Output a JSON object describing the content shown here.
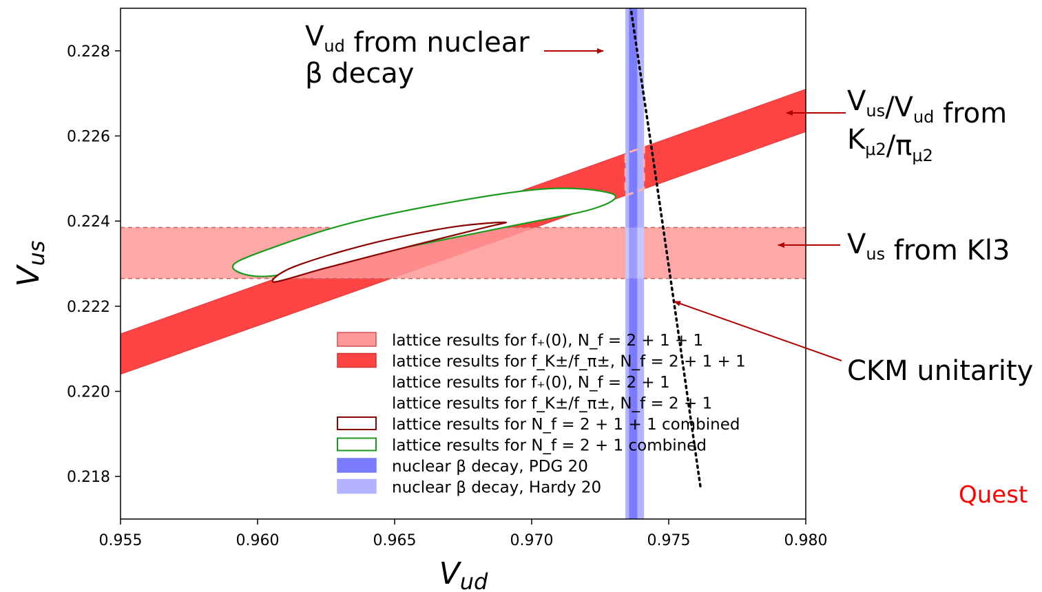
{
  "chart_data": {
    "type": "scatter",
    "xlabel": "V_ud",
    "ylabel": "V_us",
    "xlim": [
      0.955,
      0.98
    ],
    "ylim": [
      0.217,
      0.229
    ],
    "xticks": [
      "0.955",
      "0.960",
      "0.965",
      "0.970",
      "0.975",
      "0.980"
    ],
    "yticks": [
      "0.218",
      "0.220",
      "0.222",
      "0.224",
      "0.226",
      "0.228"
    ],
    "grid": false,
    "legend_position": "lower-center",
    "bands": [
      {
        "kind": "horizontal",
        "name": "lattice results for f+(0), Nf = 2+1+1",
        "y_min": 0.22265,
        "y_max": 0.22385,
        "color": "#ff9999"
      },
      {
        "kind": "sloped",
        "name": "lattice results for fK±/fπ±, Nf = 2+1+1",
        "lower": [
          [
            0.955,
            0.2204
          ],
          [
            0.98,
            0.2261
          ]
        ],
        "upper": [
          [
            0.955,
            0.22135
          ],
          [
            0.98,
            0.2271
          ]
        ],
        "color": "#ff4444"
      },
      {
        "kind": "vertical",
        "name": "nuclear β decay, PDG 20",
        "x_min": 0.97355,
        "x_max": 0.97385,
        "color": "#7b7bff"
      },
      {
        "kind": "vertical",
        "name": "nuclear β decay, Hardy 20",
        "x_min": 0.97342,
        "x_max": 0.9741,
        "color": "#b3b3ff"
      }
    ],
    "ellipses": [
      {
        "name": "lattice results for Nf = 2+1+1 combined",
        "color": "#8b0000",
        "points": [
          [
            0.9606,
            0.22257
          ],
          [
            0.9613,
            0.22292
          ],
          [
            0.964,
            0.22345
          ],
          [
            0.967,
            0.22385
          ],
          [
            0.969,
            0.22397
          ],
          [
            0.9683,
            0.22385
          ],
          [
            0.9655,
            0.2234
          ],
          [
            0.9625,
            0.2229
          ],
          [
            0.9606,
            0.22257
          ]
        ]
      },
      {
        "name": "lattice results for Nf = 2+1 combined",
        "color": "#1a9a1a",
        "points": [
          [
            0.9591,
            0.2229
          ],
          [
            0.9601,
            0.22327
          ],
          [
            0.964,
            0.22405
          ],
          [
            0.97,
            0.22473
          ],
          [
            0.9729,
            0.22465
          ],
          [
            0.9723,
            0.2243
          ],
          [
            0.969,
            0.22385
          ],
          [
            0.964,
            0.2232
          ],
          [
            0.9605,
            0.22271
          ],
          [
            0.9591,
            0.2229
          ]
        ]
      }
    ],
    "unitarity_curve": {
      "name": "CKM unitarity",
      "points": [
        [
          0.97357,
          0.2292
        ],
        [
          0.97447,
          0.2253
        ],
        [
          0.97528,
          0.2217
        ],
        [
          0.97617,
          0.2177
        ]
      ]
    },
    "legend": [
      {
        "label": "lattice results for f₊(0), N_f = 2 + 1 + 1",
        "swatch": "fill",
        "color": "#ff9999",
        "edge": "#d05050"
      },
      {
        "label": "lattice results for f_K±/f_π±, N_f = 2 + 1 + 1",
        "swatch": "fill",
        "color": "#ff4444",
        "edge": "#d03030"
      },
      {
        "label": "lattice results for f₊(0), N_f = 2 + 1",
        "swatch": "none",
        "color": "#ffffff",
        "edge": "#ffffff"
      },
      {
        "label": "lattice results for f_K±/f_π±, N_f = 2 + 1",
        "swatch": "none",
        "color": "#ffffff",
        "edge": "#ffffff"
      },
      {
        "label": "lattice results for N_f = 2 + 1 + 1 combined",
        "swatch": "outline",
        "color": "#ffffff",
        "edge": "#8b0000"
      },
      {
        "label": "lattice results for N_f = 2 + 1 combined",
        "swatch": "outline",
        "color": "#ffffff",
        "edge": "#1a9a1a"
      },
      {
        "label": "nuclear β decay, PDG 20",
        "swatch": "fill",
        "color": "#7b7bff",
        "edge": "#7b7bff"
      },
      {
        "label": "nuclear β decay, Hardy 20",
        "swatch": "fill",
        "color": "#b3b3ff",
        "edge": "#b3b3ff"
      }
    ],
    "annotations": [
      {
        "id": "vud-nuclear",
        "text_lines": [
          "V_ud from nuclear",
          "β decay"
        ],
        "arrow_color": "#b00000"
      },
      {
        "id": "ratio",
        "text_lines": [
          "V_us/V_ud from",
          "K_μ2/π_μ2"
        ],
        "arrow_color": "#b00000"
      },
      {
        "id": "kl3",
        "text_lines": [
          "V_us from Kl3"
        ],
        "arrow_color": "#b00000"
      },
      {
        "id": "ckm",
        "text_lines": [
          "CKM unitarity"
        ],
        "arrow_color": "#b00000"
      }
    ],
    "question_text": "Quest"
  }
}
